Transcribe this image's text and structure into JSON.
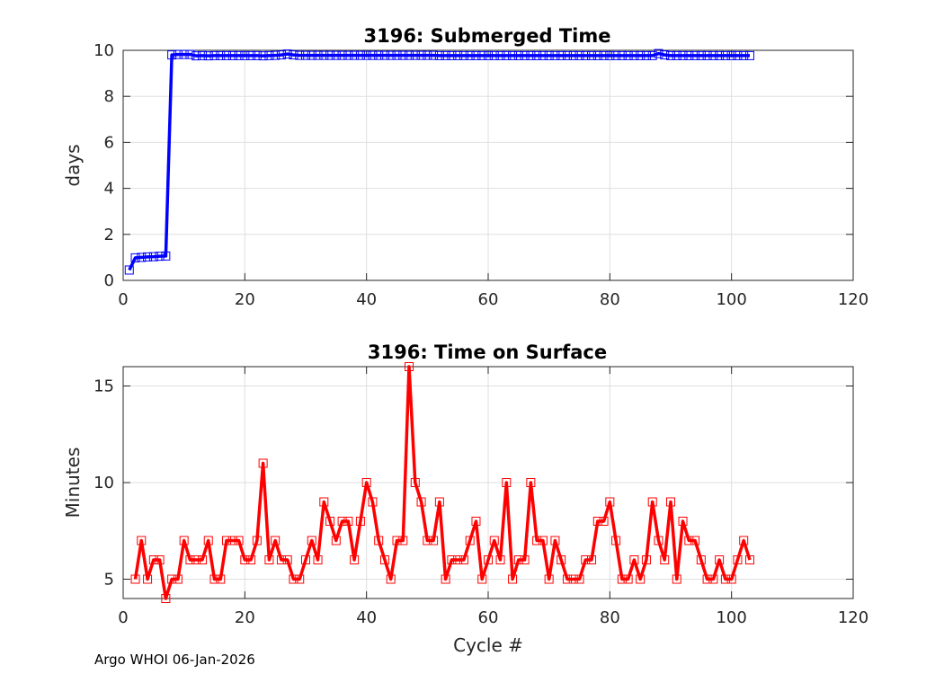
{
  "chart_data": [
    {
      "type": "line",
      "title": "3196: Submerged Time",
      "xlabel": "",
      "ylabel": "days",
      "xlim": [
        0,
        120
      ],
      "ylim": [
        0,
        10
      ],
      "xticks": [
        "0",
        "20",
        "40",
        "60",
        "80",
        "100",
        "120"
      ],
      "yticks": [
        "0",
        "2",
        "4",
        "6",
        "8",
        "10"
      ],
      "grid": true,
      "marker": "square",
      "color": "#0000ff",
      "series": [
        {
          "name": "Submerged Time",
          "x": [
            1,
            2,
            3,
            4,
            5,
            6,
            7,
            8,
            9,
            10,
            11,
            12,
            13,
            14,
            15,
            16,
            17,
            18,
            19,
            20,
            21,
            22,
            23,
            24,
            25,
            26,
            27,
            28,
            29,
            30,
            31,
            32,
            33,
            34,
            35,
            36,
            37,
            38,
            39,
            40,
            41,
            42,
            43,
            44,
            45,
            46,
            47,
            48,
            49,
            50,
            51,
            52,
            53,
            54,
            55,
            56,
            57,
            58,
            59,
            60,
            61,
            62,
            63,
            64,
            65,
            66,
            67,
            68,
            69,
            70,
            71,
            72,
            73,
            74,
            75,
            76,
            77,
            78,
            79,
            80,
            81,
            82,
            83,
            84,
            85,
            86,
            87,
            88,
            89,
            90,
            91,
            92,
            93,
            94,
            95,
            96,
            97,
            98,
            99,
            100,
            101,
            102,
            103
          ],
          "values": [
            0.45,
            0.98,
            1.0,
            1.02,
            1.03,
            1.05,
            1.06,
            9.8,
            9.82,
            9.82,
            9.82,
            9.76,
            9.77,
            9.76,
            9.77,
            9.77,
            9.77,
            9.77,
            9.77,
            9.77,
            9.77,
            9.77,
            9.76,
            9.77,
            9.78,
            9.8,
            9.84,
            9.8,
            9.78,
            9.78,
            9.78,
            9.78,
            9.78,
            9.78,
            9.78,
            9.78,
            9.78,
            9.78,
            9.78,
            9.78,
            9.78,
            9.78,
            9.78,
            9.78,
            9.78,
            9.78,
            9.78,
            9.78,
            9.78,
            9.78,
            9.78,
            9.77,
            9.77,
            9.77,
            9.77,
            9.77,
            9.77,
            9.77,
            9.77,
            9.77,
            9.77,
            9.77,
            9.77,
            9.77,
            9.77,
            9.77,
            9.77,
            9.77,
            9.77,
            9.77,
            9.77,
            9.77,
            9.77,
            9.77,
            9.77,
            9.77,
            9.77,
            9.77,
            9.77,
            9.77,
            9.77,
            9.77,
            9.77,
            9.77,
            9.77,
            9.77,
            9.77,
            9.86,
            9.8,
            9.77,
            9.77,
            9.77,
            9.77,
            9.77,
            9.77,
            9.77,
            9.77,
            9.77,
            9.77,
            9.77,
            9.77,
            9.77,
            9.77
          ]
        }
      ]
    },
    {
      "type": "line",
      "title": "3196: Time on Surface",
      "xlabel": "Cycle #",
      "ylabel": "Minutes",
      "xlim": [
        0,
        120
      ],
      "ylim": [
        4,
        16
      ],
      "xticks": [
        "0",
        "20",
        "40",
        "60",
        "80",
        "100",
        "120"
      ],
      "yticks": [
        "5",
        "10",
        "15"
      ],
      "grid": true,
      "marker": "square",
      "color": "#ff0000",
      "series": [
        {
          "name": "Time on Surface",
          "x": [
            2,
            3,
            4,
            5,
            6,
            7,
            8,
            9,
            10,
            11,
            12,
            13,
            14,
            15,
            16,
            17,
            18,
            19,
            20,
            21,
            22,
            23,
            24,
            25,
            26,
            27,
            28,
            29,
            30,
            31,
            32,
            33,
            34,
            35,
            36,
            37,
            38,
            39,
            40,
            41,
            42,
            43,
            44,
            45,
            46,
            47,
            48,
            49,
            50,
            51,
            52,
            53,
            54,
            55,
            56,
            57,
            58,
            59,
            60,
            61,
            62,
            63,
            64,
            65,
            66,
            67,
            68,
            69,
            70,
            71,
            72,
            73,
            74,
            75,
            76,
            77,
            78,
            79,
            80,
            81,
            82,
            83,
            84,
            85,
            86,
            87,
            88,
            89,
            90,
            91,
            92,
            93,
            94,
            95,
            96,
            97,
            98,
            99,
            100,
            101,
            102,
            103
          ],
          "values": [
            5,
            7,
            5,
            6,
            6,
            4,
            5,
            5,
            7,
            6,
            6,
            6,
            7,
            5,
            5,
            7,
            7,
            7,
            6,
            6,
            7,
            11,
            6,
            7,
            6,
            6,
            5,
            5,
            6,
            7,
            6,
            9,
            8,
            7,
            8,
            8,
            6,
            8,
            10,
            9,
            7,
            6,
            5,
            7,
            7,
            16,
            10,
            9,
            7,
            7,
            9,
            5,
            6,
            6,
            6,
            7,
            8,
            5,
            6,
            7,
            6,
            10,
            5,
            6,
            6,
            10,
            7,
            7,
            5,
            7,
            6,
            5,
            5,
            5,
            6,
            6,
            8,
            8,
            9,
            7,
            5,
            5,
            6,
            5,
            6,
            9,
            7,
            6,
            9,
            5,
            8,
            7,
            7,
            6,
            5,
            5,
            6,
            5,
            5,
            6,
            7,
            6
          ]
        }
      ]
    }
  ],
  "footer": "Argo WHOI 06-Jan-2026"
}
